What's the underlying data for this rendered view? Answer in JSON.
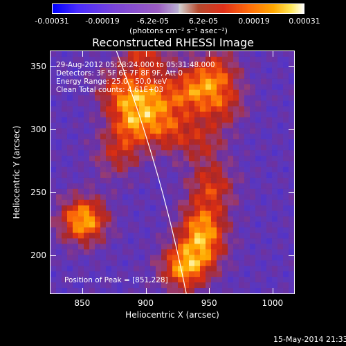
{
  "colorbar": {
    "ticks": [
      "-0.00031",
      "-0.00019",
      "-6.2e-05",
      "6.2e-05",
      "0.00019",
      "0.00031"
    ],
    "unit": "(photons cm⁻² s⁻¹ asec⁻²)"
  },
  "chart_data": {
    "type": "heatmap",
    "title": "Reconstructed RHESSI Image",
    "xlabel": "Heliocentric X (arcsec)",
    "ylabel": "Heliocentric Y (arcsec)",
    "xlim": [
      825,
      1017
    ],
    "ylim": [
      170,
      362
    ],
    "x_ticks": [
      "850",
      "900",
      "950",
      "1000"
    ],
    "y_ticks": [
      "200",
      "250",
      "300",
      "350"
    ],
    "zlim": [
      -0.00031,
      0.00031
    ],
    "colormap": "blue-purple-red-yellow-white",
    "annotations": [
      "29-Aug-2012 05:28:24.000 to 05:31:48.000",
      "Detectors: 3F 5F 6F 7F 8F 9F, Att 0",
      "Energy Range: 25.0 - 50.0 keV",
      "Clean     Total counts: 4.61E+03",
      "Position of Peak = [851,228]"
    ],
    "peak": {
      "x": 851,
      "y": 228
    },
    "sources": [
      {
        "x": 851,
        "y": 228,
        "value": 0.00031
      },
      {
        "x": 930,
        "y": 190,
        "value": 0.00027
      },
      {
        "x": 945,
        "y": 225,
        "value": 0.00022
      },
      {
        "x": 952,
        "y": 255,
        "value": 0.00018
      },
      {
        "x": 890,
        "y": 305,
        "value": 0.00022
      },
      {
        "x": 905,
        "y": 325,
        "value": 0.0002
      },
      {
        "x": 880,
        "y": 330,
        "value": 0.00019
      },
      {
        "x": 935,
        "y": 330,
        "value": 0.0002
      },
      {
        "x": 955,
        "y": 345,
        "value": 0.00019
      },
      {
        "x": 960,
        "y": 320,
        "value": 0.00016
      },
      {
        "x": 918,
        "y": 300,
        "value": 0.00017
      },
      {
        "x": 878,
        "y": 280,
        "value": 0.00014
      },
      {
        "x": 900,
        "y": 360,
        "value": 0.00018
      },
      {
        "x": 945,
        "y": 290,
        "value": 0.00013
      },
      {
        "x": 945,
        "y": 205,
        "value": 0.00018
      }
    ]
  },
  "timestamp": "15-May-2014 21:33"
}
